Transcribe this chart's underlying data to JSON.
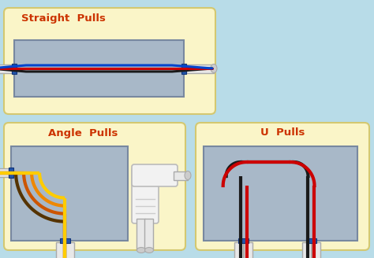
{
  "bg_color": "#b8dce8",
  "panel_color": "#faf5c8",
  "panel_edge": "#d4c870",
  "box_color": "#a8b8c8",
  "box_edge": "#7888a0",
  "title_color": "#cc3300",
  "title1": "Straight  Pulls",
  "title2": "Angle  Pulls",
  "title3": "U  Pulls",
  "wire_colors_straight": [
    "#1a1a1a",
    "#cc0000",
    "#1a1a1a"
  ],
  "wire_colors_angle": [
    "#cc6600",
    "#dd8800",
    "#ffcc00"
  ],
  "wire_colors_u": [
    "#1a1a1a",
    "#cc0000"
  ],
  "conduit_color": "#e8e8e8",
  "conduit_edge": "#aaaaaa",
  "knockout_color": "#2255aa",
  "font_size_title": 9.5
}
